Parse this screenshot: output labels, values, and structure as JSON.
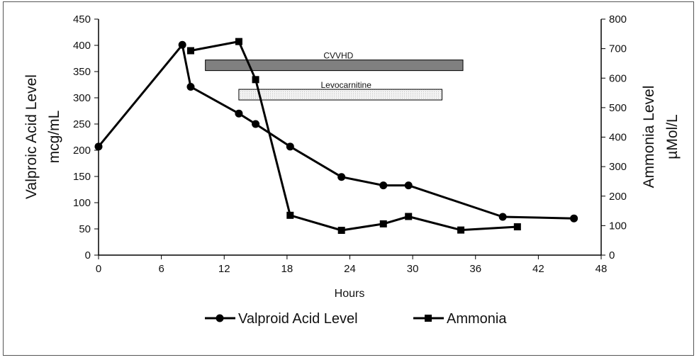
{
  "chart_data": {
    "type": "line",
    "xlabel": "Hours",
    "x_ticks": [
      "0",
      "6",
      "12",
      "18",
      "24",
      "30",
      "36",
      "42",
      "48"
    ],
    "xlim": [
      0,
      48
    ],
    "y_left": {
      "label_line1": "Valproic Acid Level",
      "label_line2": "mcg/mL",
      "ticks": [
        "0",
        "50",
        "100",
        "150",
        "200",
        "250",
        "300",
        "350",
        "400",
        "450"
      ],
      "ylim": [
        0,
        450
      ]
    },
    "y_right": {
      "label_line1": "Ammonia Level",
      "label_line2": "µMol/L",
      "ticks": [
        "0",
        "100",
        "200",
        "300",
        "400",
        "500",
        "600",
        "700",
        "800"
      ],
      "ylim": [
        0,
        800
      ]
    },
    "series": [
      {
        "name": "Valproid Acid Level",
        "axis": "left",
        "marker": "circle",
        "points": [
          [
            0,
            207
          ],
          [
            8,
            401
          ],
          [
            8.8,
            321
          ],
          [
            13.4,
            270
          ],
          [
            15,
            250
          ],
          [
            18.3,
            207
          ],
          [
            23.2,
            149
          ],
          [
            27.2,
            133
          ],
          [
            29.6,
            133
          ],
          [
            38.6,
            73
          ],
          [
            45.4,
            70
          ]
        ]
      },
      {
        "name": "Ammonia",
        "axis": "right",
        "marker": "square",
        "points": [
          [
            8.8,
            693
          ],
          [
            13.4,
            724
          ],
          [
            15,
            595
          ],
          [
            18.3,
            135
          ],
          [
            23.2,
            84
          ],
          [
            27.2,
            106
          ],
          [
            29.6,
            131
          ],
          [
            34.6,
            85
          ],
          [
            40,
            96
          ]
        ]
      }
    ],
    "bars": [
      {
        "label": "CVVHD",
        "start": 10.2,
        "end": 34.8,
        "color": "#808080"
      },
      {
        "label": "Levocarnitine",
        "start": 13.4,
        "end": 32.8,
        "color": "#ececec"
      }
    ],
    "bar_levels_left_axis": [
      362,
      306
    ],
    "legend_position": "bottom",
    "grid": false
  }
}
